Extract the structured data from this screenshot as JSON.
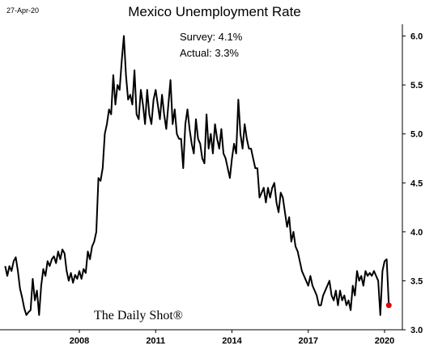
{
  "chart_data": {
    "type": "line",
    "date_label": "27-Apr-20",
    "title": "Mexico Unemployment Rate",
    "annotations": [
      "Survey: 4.1%",
      "Actual:  3.3%"
    ],
    "watermark": "The Daily Shot®",
    "x": [
      2005.083,
      2005.167,
      2005.25,
      2005.333,
      2005.417,
      2005.5,
      2005.583,
      2005.667,
      2005.75,
      2005.833,
      2005.917,
      2006.0,
      2006.083,
      2006.167,
      2006.25,
      2006.333,
      2006.417,
      2006.5,
      2006.583,
      2006.667,
      2006.75,
      2006.833,
      2006.917,
      2007.0,
      2007.083,
      2007.167,
      2007.25,
      2007.333,
      2007.417,
      2007.5,
      2007.583,
      2007.667,
      2007.75,
      2007.833,
      2007.917,
      2008.0,
      2008.083,
      2008.167,
      2008.25,
      2008.333,
      2008.417,
      2008.5,
      2008.583,
      2008.667,
      2008.75,
      2008.833,
      2008.917,
      2009.0,
      2009.083,
      2009.167,
      2009.25,
      2009.333,
      2009.417,
      2009.5,
      2009.583,
      2009.667,
      2009.75,
      2009.833,
      2009.917,
      2010.0,
      2010.083,
      2010.167,
      2010.25,
      2010.333,
      2010.417,
      2010.5,
      2010.583,
      2010.667,
      2010.75,
      2010.833,
      2010.917,
      2011.0,
      2011.083,
      2011.167,
      2011.25,
      2011.333,
      2011.417,
      2011.5,
      2011.583,
      2011.667,
      2011.75,
      2011.833,
      2011.917,
      2012.0,
      2012.083,
      2012.167,
      2012.25,
      2012.333,
      2012.417,
      2012.5,
      2012.583,
      2012.667,
      2012.75,
      2012.833,
      2012.917,
      2013.0,
      2013.083,
      2013.167,
      2013.25,
      2013.333,
      2013.417,
      2013.5,
      2013.583,
      2013.667,
      2013.75,
      2013.833,
      2013.917,
      2014.0,
      2014.083,
      2014.167,
      2014.25,
      2014.333,
      2014.417,
      2014.5,
      2014.583,
      2014.667,
      2014.75,
      2014.833,
      2014.917,
      2015.0,
      2015.083,
      2015.167,
      2015.25,
      2015.333,
      2015.417,
      2015.5,
      2015.583,
      2015.667,
      2015.75,
      2015.833,
      2015.917,
      2016.0,
      2016.083,
      2016.167,
      2016.25,
      2016.333,
      2016.417,
      2016.5,
      2016.583,
      2016.667,
      2016.75,
      2016.833,
      2016.917,
      2017.0,
      2017.083,
      2017.167,
      2017.25,
      2017.333,
      2017.417,
      2017.5,
      2017.583,
      2017.667,
      2017.75,
      2017.833,
      2017.917,
      2018.0,
      2018.083,
      2018.167,
      2018.25,
      2018.333,
      2018.417,
      2018.5,
      2018.583,
      2018.667,
      2018.75,
      2018.833,
      2018.917,
      2019.0,
      2019.083,
      2019.167,
      2019.25,
      2019.333,
      2019.417,
      2019.5,
      2019.583,
      2019.667,
      2019.75,
      2019.833,
      2019.917,
      2020.0,
      2020.083,
      2020.167
    ],
    "series": [
      {
        "color": "#000000",
        "highlight_color": "#e00000",
        "values": [
          3.65,
          3.55,
          3.65,
          3.6,
          3.7,
          3.74,
          3.6,
          3.42,
          3.33,
          3.22,
          3.15,
          3.18,
          3.2,
          3.52,
          3.3,
          3.4,
          3.15,
          3.45,
          3.62,
          3.55,
          3.7,
          3.65,
          3.72,
          3.75,
          3.68,
          3.8,
          3.72,
          3.82,
          3.78,
          3.6,
          3.5,
          3.58,
          3.48,
          3.56,
          3.52,
          3.6,
          3.52,
          3.62,
          3.58,
          3.8,
          3.72,
          3.85,
          3.9,
          4.0,
          4.55,
          4.52,
          4.65,
          5.0,
          5.1,
          5.25,
          5.2,
          5.6,
          5.3,
          5.5,
          5.45,
          5.75,
          6.0,
          5.6,
          5.35,
          5.4,
          5.3,
          5.65,
          5.2,
          5.15,
          5.45,
          5.3,
          5.1,
          5.45,
          5.2,
          5.1,
          5.35,
          5.45,
          5.3,
          5.15,
          5.4,
          5.2,
          5.05,
          5.3,
          5.55,
          5.1,
          5.25,
          5.0,
          4.95,
          4.95,
          4.65,
          5.1,
          5.25,
          5.05,
          4.9,
          4.8,
          5.15,
          4.95,
          4.9,
          4.75,
          4.7,
          5.2,
          4.85,
          5.0,
          4.8,
          5.1,
          4.95,
          4.85,
          5.05,
          4.8,
          4.75,
          4.65,
          4.55,
          4.75,
          4.9,
          4.8,
          5.35,
          5.0,
          4.85,
          5.1,
          4.95,
          4.85,
          4.85,
          4.75,
          4.65,
          4.65,
          4.35,
          4.4,
          4.45,
          4.3,
          4.45,
          4.35,
          4.45,
          4.5,
          4.3,
          4.2,
          4.4,
          4.35,
          4.2,
          4.05,
          4.15,
          3.9,
          4.0,
          3.85,
          3.8,
          3.7,
          3.6,
          3.55,
          3.5,
          3.45,
          3.55,
          3.45,
          3.4,
          3.35,
          3.25,
          3.25,
          3.35,
          3.4,
          3.45,
          3.5,
          3.35,
          3.3,
          3.4,
          3.25,
          3.4,
          3.3,
          3.35,
          3.25,
          3.3,
          3.2,
          3.45,
          3.35,
          3.6,
          3.5,
          3.55,
          3.45,
          3.6,
          3.55,
          3.58,
          3.55,
          3.6,
          3.55,
          3.5,
          3.15,
          3.6,
          3.7,
          3.72,
          3.25
        ]
      }
    ],
    "xlim": [
      2004.88,
      2020.7
    ],
    "xticks": [
      2008,
      2011,
      2014,
      2017,
      2020
    ],
    "ylim": [
      3.0,
      6.12
    ],
    "yticks": [
      {
        "value": 3,
        "label": "3.0"
      },
      3.5,
      {
        "value": 4,
        "label": "4.0"
      },
      4.5,
      {
        "value": 5,
        "label": "5.0"
      },
      5.5,
      {
        "value": 6,
        "label": "6.0"
      }
    ],
    "y_axis_side": "right"
  }
}
